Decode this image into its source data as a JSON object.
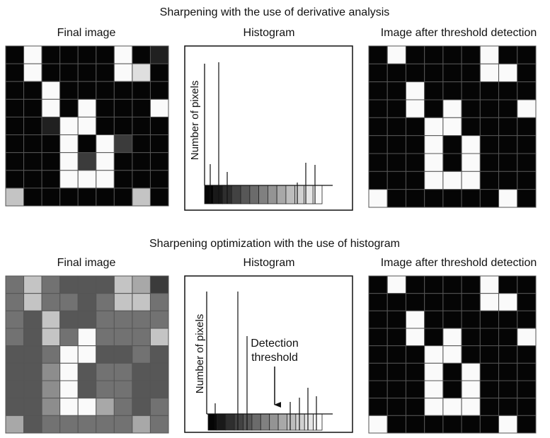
{
  "top": {
    "title": "Sharpening with the use of derivative analysis",
    "final_label": "Final image",
    "histogram_label": "Histogram",
    "threshold_label": "Image after threshold detection",
    "y_axis_label": "Number of pixels"
  },
  "bottom": {
    "title": "Sharpening optimization with the use of histogram",
    "final_label": "Final image",
    "histogram_label": "Histogram",
    "threshold_label": "Image after threshold detection",
    "y_axis_label": "Number of pixels",
    "annotation_lines": [
      "Detection",
      "threshold"
    ]
  }
}
